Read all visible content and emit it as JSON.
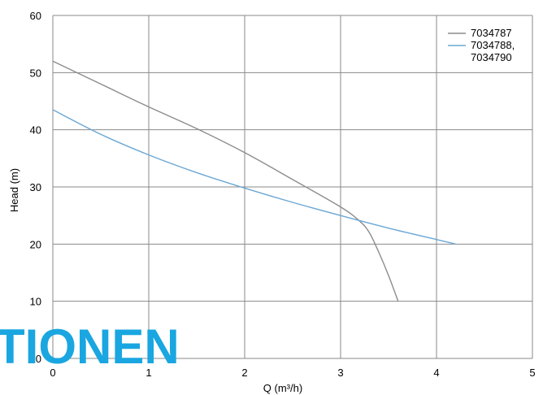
{
  "chart_data": {
    "type": "line",
    "xlabel": "Q (m³/h)",
    "ylabel": "Head (m)",
    "xlim": [
      0,
      5
    ],
    "ylim": [
      0,
      60
    ],
    "x_ticks": [
      "0",
      "1",
      "2",
      "3",
      "4",
      "5"
    ],
    "y_ticks": [
      "0",
      "10",
      "20",
      "30",
      "40",
      "50",
      "60"
    ],
    "grid": true,
    "legend_position": "top-right",
    "series": [
      {
        "name": "7034787",
        "color": "#8c8c8c",
        "points": [
          [
            0,
            52
          ],
          [
            0.5,
            48
          ],
          [
            1.0,
            44
          ],
          [
            1.5,
            40.2
          ],
          [
            2.0,
            36
          ],
          [
            2.5,
            31.3
          ],
          [
            3.0,
            26.5
          ],
          [
            3.2,
            24
          ],
          [
            3.3,
            22
          ],
          [
            3.4,
            18.5
          ],
          [
            3.5,
            14.5
          ],
          [
            3.6,
            10
          ]
        ]
      },
      {
        "name": "7034788,\n7034790",
        "color": "#6ba7d4",
        "points": [
          [
            0,
            43.5
          ],
          [
            0.5,
            39.2
          ],
          [
            1.0,
            35.6
          ],
          [
            1.5,
            32.5
          ],
          [
            2.0,
            29.8
          ],
          [
            2.5,
            27.3
          ],
          [
            3.0,
            25
          ],
          [
            3.5,
            22.8
          ],
          [
            4.0,
            20.8
          ],
          [
            4.2,
            20
          ]
        ]
      }
    ]
  },
  "watermark": {
    "text": "TIONEN",
    "color": "#1aa6e0"
  }
}
